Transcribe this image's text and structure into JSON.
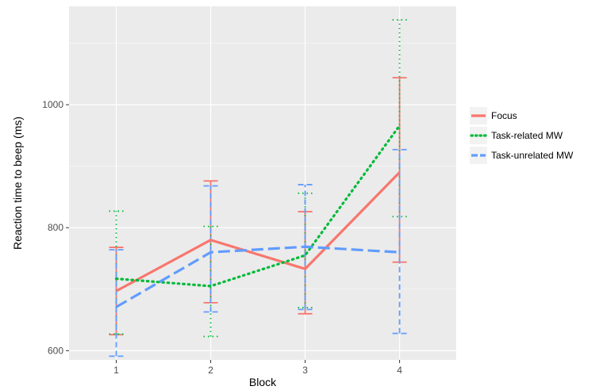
{
  "chart_data": {
    "type": "line",
    "xlabel": "Block",
    "ylabel": "Reaction time to beep (ms)",
    "x": [
      1,
      2,
      3,
      4
    ],
    "xlim": [
      0.5,
      4.6
    ],
    "ylim": [
      585,
      1160
    ],
    "yticks": [
      600,
      800,
      1000
    ],
    "grid": true,
    "legend_position": "right",
    "series": [
      {
        "name": "Focus",
        "line_style": "solid",
        "color": "#F8766D",
        "values": [
          697,
          780,
          733,
          890
        ],
        "error_low": [
          626,
          678,
          660,
          744
        ],
        "error_high": [
          768,
          876,
          826,
          1044
        ]
      },
      {
        "name": "Task-related MW",
        "line_style": "dotted",
        "color": "#00BA38",
        "values": [
          717,
          705,
          755,
          966
        ],
        "error_low": [
          627,
          623,
          670,
          818
        ],
        "error_high": [
          827,
          802,
          856,
          1138
        ]
      },
      {
        "name": "Task-unrelated MW",
        "line_style": "dashed",
        "color": "#619CFF",
        "values": [
          671,
          760,
          769,
          760
        ],
        "error_low": [
          591,
          663,
          667,
          628
        ],
        "error_high": [
          764,
          868,
          870,
          927
        ]
      }
    ]
  },
  "theme": {
    "panel_background": "#EBEBEB",
    "gridline_major": "#FFFFFF",
    "tick_text": "#4D4D4D"
  }
}
